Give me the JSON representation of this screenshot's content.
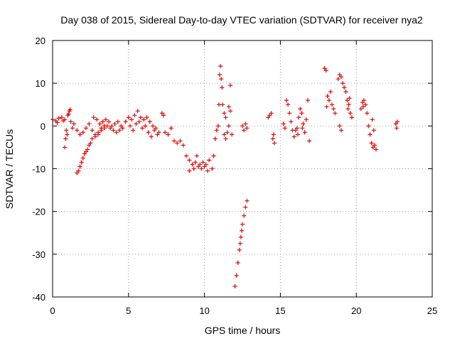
{
  "chart_data": {
    "type": "scatter",
    "title": "Day 038 of 2015, Sidereal Day-to-day VTEC variation (SDTVAR) for receiver nya2",
    "xlabel": "GPS time / hours",
    "ylabel": "SDTVAR / TECUs",
    "xlim": [
      0,
      25
    ],
    "ylim": [
      -40,
      20
    ],
    "xticks": [
      0,
      5,
      10,
      15,
      20,
      25
    ],
    "yticks": [
      -40,
      -30,
      -20,
      -10,
      0,
      10,
      20
    ],
    "grid": true,
    "marker": "plus",
    "marker_color": "#ff0000",
    "series": [
      {
        "name": "SDTVAR",
        "points": [
          [
            0.0,
            1.5
          ],
          [
            0.2,
            1.2
          ],
          [
            0.4,
            1.8
          ],
          [
            0.6,
            2.0
          ],
          [
            0.8,
            1.5
          ],
          [
            1.0,
            2.5
          ],
          [
            1.1,
            3.5
          ],
          [
            1.2,
            1.0
          ],
          [
            1.3,
            -0.5
          ],
          [
            1.4,
            0.5
          ],
          [
            0.9,
            -1.0
          ],
          [
            0.85,
            -3.0
          ],
          [
            0.8,
            -5.0
          ],
          [
            0.95,
            -2.0
          ],
          [
            1.05,
            2.8
          ],
          [
            1.15,
            3.8
          ],
          [
            0.7,
            1.2
          ],
          [
            0.3,
            0.8
          ],
          [
            1.6,
            -11.0
          ],
          [
            1.7,
            -10.5
          ],
          [
            1.8,
            -9.5
          ],
          [
            1.9,
            -8.5
          ],
          [
            2.0,
            -7.5
          ],
          [
            2.1,
            -6.5
          ],
          [
            2.2,
            -6.0
          ],
          [
            2.3,
            -5.5
          ],
          [
            2.4,
            -4.5
          ],
          [
            2.5,
            -4.0
          ],
          [
            1.6,
            -1.0
          ],
          [
            1.8,
            -2.0
          ],
          [
            2.0,
            -1.5
          ],
          [
            2.2,
            -0.5
          ],
          [
            2.4,
            0.5
          ],
          [
            2.6,
            -1.0
          ],
          [
            2.8,
            -2.0
          ],
          [
            3.0,
            -1.5
          ],
          [
            3.2,
            -0.5
          ],
          [
            3.4,
            0.0
          ],
          [
            2.6,
            -3.0
          ],
          [
            2.8,
            -2.5
          ],
          [
            3.0,
            -2.0
          ],
          [
            3.2,
            -1.0
          ],
          [
            3.4,
            -0.5
          ],
          [
            3.6,
            0.0
          ],
          [
            3.8,
            -0.5
          ],
          [
            4.0,
            -1.0
          ],
          [
            4.2,
            -1.5
          ],
          [
            4.4,
            -1.0
          ],
          [
            2.7,
            2.0
          ],
          [
            2.9,
            1.5
          ],
          [
            3.1,
            0.5
          ],
          [
            3.3,
            1.0
          ],
          [
            3.5,
            1.5
          ],
          [
            3.7,
            1.0
          ],
          [
            3.9,
            0.0
          ],
          [
            4.1,
            0.5
          ],
          [
            4.3,
            1.0
          ],
          [
            4.5,
            0.0
          ],
          [
            4.6,
            -0.5
          ],
          [
            4.8,
            1.0
          ],
          [
            5.0,
            2.0
          ],
          [
            5.2,
            1.5
          ],
          [
            5.4,
            2.5
          ],
          [
            5.6,
            3.5
          ],
          [
            5.8,
            2.0
          ],
          [
            6.0,
            1.5
          ],
          [
            6.2,
            2.0
          ],
          [
            6.4,
            1.0
          ],
          [
            5.1,
            0.0
          ],
          [
            5.3,
            -1.0
          ],
          [
            5.5,
            0.5
          ],
          [
            5.7,
            1.0
          ],
          [
            5.9,
            -0.5
          ],
          [
            6.1,
            0.0
          ],
          [
            6.3,
            -1.5
          ],
          [
            6.5,
            -2.5
          ],
          [
            6.7,
            -1.0
          ],
          [
            6.9,
            -2.0
          ],
          [
            6.6,
            0.0
          ],
          [
            6.8,
            -0.5
          ],
          [
            7.0,
            -1.5
          ],
          [
            7.2,
            3.0
          ],
          [
            7.3,
            2.5
          ],
          [
            7.4,
            -1.5
          ],
          [
            7.6,
            -2.0
          ],
          [
            7.8,
            -0.5
          ],
          [
            8.0,
            -3.5
          ],
          [
            8.2,
            -4.0
          ],
          [
            8.4,
            -3.5
          ],
          [
            8.6,
            -4.5
          ],
          [
            8.8,
            -7.0
          ],
          [
            9.0,
            -8.0
          ],
          [
            9.2,
            -9.0
          ],
          [
            9.4,
            -8.5
          ],
          [
            9.6,
            -9.5
          ],
          [
            9.8,
            -10.0
          ],
          [
            10.0,
            -9.5
          ],
          [
            10.2,
            -10.5
          ],
          [
            9.0,
            -10.5
          ],
          [
            9.3,
            -10.0
          ],
          [
            9.5,
            -7.0
          ],
          [
            9.7,
            -9.0
          ],
          [
            9.9,
            -8.5
          ],
          [
            10.1,
            -9.0
          ],
          [
            10.3,
            -8.0
          ],
          [
            10.5,
            -10.0
          ],
          [
            10.6,
            -7.0
          ],
          [
            10.7,
            -3.0
          ],
          [
            10.8,
            -1.0
          ],
          [
            10.9,
            0.0
          ],
          [
            10.95,
            5.0
          ],
          [
            11.0,
            12.0
          ],
          [
            11.05,
            14.0
          ],
          [
            11.1,
            11.0
          ],
          [
            11.15,
            9.0
          ],
          [
            11.2,
            5.0
          ],
          [
            11.3,
            3.0
          ],
          [
            11.4,
            2.0
          ],
          [
            11.3,
            -2.0
          ],
          [
            11.4,
            -3.0
          ],
          [
            11.5,
            -1.5
          ],
          [
            11.6,
            4.5
          ],
          [
            11.7,
            9.5
          ],
          [
            11.8,
            -2.0
          ],
          [
            11.6,
            0.0
          ],
          [
            11.7,
            3.5
          ],
          [
            12.0,
            -37.5
          ],
          [
            12.1,
            -35.0
          ],
          [
            12.2,
            -32.0
          ],
          [
            12.3,
            -29.0
          ],
          [
            12.4,
            -26.0
          ],
          [
            12.5,
            -23.0
          ],
          [
            12.6,
            -21.0
          ],
          [
            12.7,
            -19.0
          ],
          [
            12.8,
            -17.5
          ],
          [
            12.35,
            -27.5
          ],
          [
            12.45,
            -24.5
          ],
          [
            12.5,
            0.0
          ],
          [
            12.6,
            -1.0
          ],
          [
            12.7,
            0.5
          ],
          [
            12.8,
            -0.5
          ],
          [
            14.2,
            2.0
          ],
          [
            14.3,
            2.5
          ],
          [
            14.4,
            3.0
          ],
          [
            14.5,
            -3.0
          ],
          [
            14.6,
            -4.0
          ],
          [
            14.55,
            -2.0
          ],
          [
            15.2,
            0.5
          ],
          [
            15.3,
            -0.5
          ],
          [
            15.4,
            6.0
          ],
          [
            15.5,
            5.0
          ],
          [
            15.6,
            3.0
          ],
          [
            15.7,
            1.0
          ],
          [
            15.8,
            -1.0
          ],
          [
            15.9,
            -2.5
          ],
          [
            16.0,
            -1.0
          ],
          [
            16.1,
            -0.5
          ],
          [
            16.2,
            2.0
          ],
          [
            16.3,
            4.0
          ],
          [
            16.4,
            3.0
          ],
          [
            16.5,
            0.5
          ],
          [
            16.6,
            -1.5
          ],
          [
            16.7,
            1.5
          ],
          [
            16.8,
            6.0
          ],
          [
            16.9,
            -3.5
          ],
          [
            16.15,
            -2.0
          ],
          [
            16.45,
            -0.5
          ],
          [
            17.9,
            13.5
          ],
          [
            18.0,
            13.0
          ],
          [
            18.1,
            7.0
          ],
          [
            18.2,
            6.0
          ],
          [
            18.3,
            8.0
          ],
          [
            18.4,
            5.0
          ],
          [
            18.5,
            4.0
          ],
          [
            18.6,
            3.0
          ],
          [
            18.05,
            4.5
          ],
          [
            18.8,
            11.0
          ],
          [
            18.9,
            12.0
          ],
          [
            19.0,
            11.5
          ],
          [
            19.1,
            10.0
          ],
          [
            19.2,
            9.0
          ],
          [
            19.3,
            8.0
          ],
          [
            19.4,
            6.0
          ],
          [
            19.5,
            5.0
          ],
          [
            19.6,
            3.0
          ],
          [
            19.7,
            2.0
          ],
          [
            18.9,
            0.0
          ],
          [
            19.0,
            -1.0
          ],
          [
            19.45,
            4.0
          ],
          [
            19.55,
            6.5
          ],
          [
            20.3,
            4.0
          ],
          [
            20.4,
            5.5
          ],
          [
            20.5,
            6.0
          ],
          [
            20.6,
            5.0
          ],
          [
            20.7,
            3.0
          ],
          [
            20.45,
            4.5
          ],
          [
            20.8,
            0.0
          ],
          [
            20.9,
            -2.0
          ],
          [
            21.0,
            -4.0
          ],
          [
            21.1,
            -5.0
          ],
          [
            21.2,
            -4.5
          ],
          [
            21.3,
            -5.5
          ],
          [
            21.05,
            1.5
          ],
          [
            21.15,
            -1.0
          ],
          [
            22.6,
            0.5
          ],
          [
            22.7,
            1.0
          ],
          [
            22.65,
            -0.5
          ]
        ]
      }
    ]
  }
}
